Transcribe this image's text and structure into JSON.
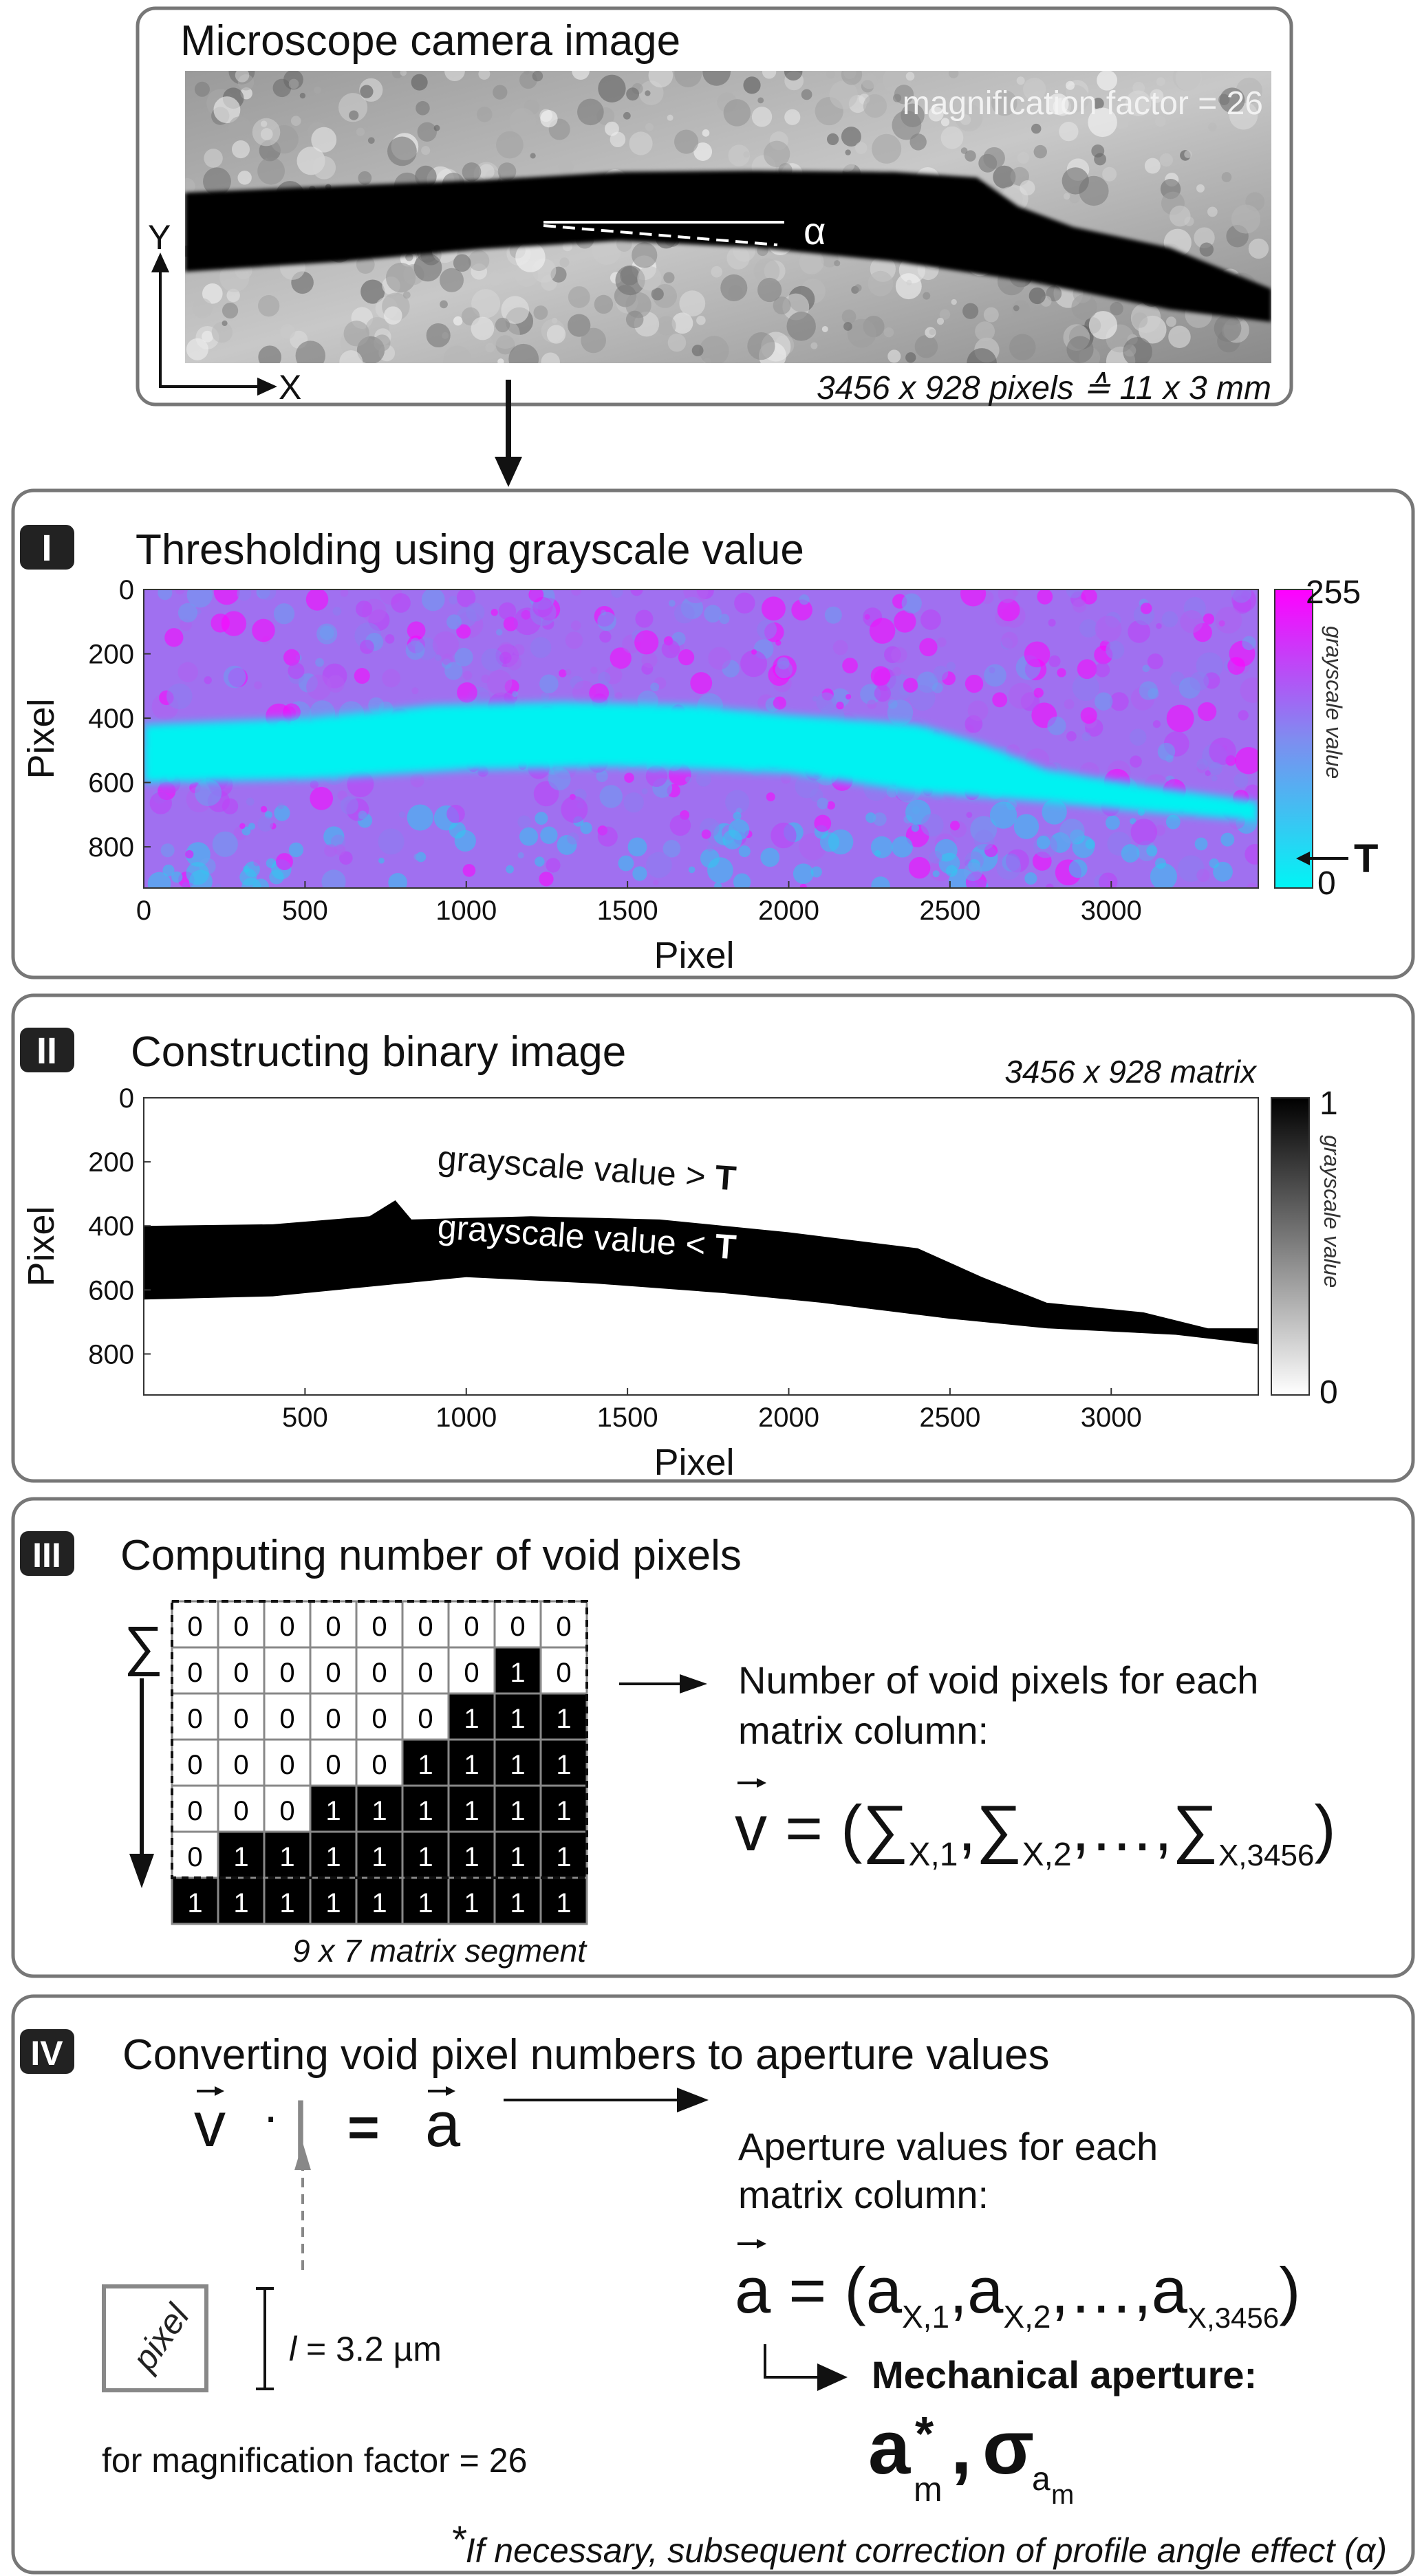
{
  "top": {
    "title": "Microscope camera image",
    "magnification": "magnification factor = 26",
    "alpha": "α",
    "axis_x": "X",
    "axis_y": "Y",
    "dimensions": "3456 x 928 pixels ≙ 11 x 3 mm"
  },
  "panel1": {
    "badge": "I",
    "title": "Thresholding using grayscale value",
    "colorbar_max": "255",
    "colorbar_min": "0",
    "colorbar_label": "grayscale value",
    "threshold_label": "T",
    "colors": {
      "low": "#00f0f0",
      "mid": "#6aa0f0",
      "high": "#ff00ff"
    }
  },
  "panel2": {
    "badge": "II",
    "title": "Constructing binary image",
    "matrix_size": "3456 x 928 matrix",
    "label_above": "grayscale value > ",
    "label_below": "grayscale value < ",
    "threshold_label": "T",
    "colorbar_max": "1",
    "colorbar_min": "0",
    "colorbar_label": "grayscale value"
  },
  "chart_data": [
    {
      "type": "heatmap",
      "xlabel": "Pixel",
      "ylabel": "Pixel",
      "xlim": [
        0,
        3456
      ],
      "ylim": [
        928,
        0
      ],
      "xticks": [
        "0",
        "500",
        "1000",
        "1500",
        "2000",
        "2500",
        "3000"
      ],
      "yticks": [
        "0",
        "200",
        "400",
        "600",
        "800"
      ],
      "colorbar": {
        "min": 0,
        "max": 255,
        "label": "grayscale value"
      }
    },
    {
      "type": "heatmap",
      "xlabel": "Pixel",
      "ylabel": "Pixel",
      "xlim": [
        0,
        3456
      ],
      "ylim": [
        928,
        0
      ],
      "xticks": [
        "500",
        "1000",
        "1500",
        "2000",
        "2500",
        "3000"
      ],
      "yticks": [
        "0",
        "200",
        "400",
        "600",
        "800"
      ],
      "colorbar": {
        "min": 0,
        "max": 1,
        "label": "grayscale value"
      }
    }
  ],
  "panel3": {
    "badge": "III",
    "title": "Computing number of void pixels",
    "sum_symbol": "∑",
    "matrix": [
      [
        0,
        0,
        0,
        0,
        0,
        0,
        0,
        0,
        0
      ],
      [
        0,
        0,
        0,
        0,
        0,
        0,
        0,
        1,
        0
      ],
      [
        0,
        0,
        0,
        0,
        0,
        0,
        1,
        1,
        1
      ],
      [
        0,
        0,
        0,
        0,
        0,
        1,
        1,
        1,
        1
      ],
      [
        0,
        0,
        0,
        1,
        1,
        1,
        1,
        1,
        1
      ],
      [
        0,
        1,
        1,
        1,
        1,
        1,
        1,
        1,
        1
      ],
      [
        1,
        1,
        1,
        1,
        1,
        1,
        1,
        1,
        1
      ]
    ],
    "matrix_caption": "9 x 7 matrix segment",
    "description_line1": "Number of void pixels for each",
    "description_line2": "matrix column:",
    "formula": {
      "lhs": "v",
      "eq": " = (",
      "sum": "∑",
      "sub1": "X,1",
      "sub2": "X,2",
      "subn": "X,3456",
      "sep": ",",
      "dots": ",…,",
      "close": ")"
    }
  },
  "panel4": {
    "badge": "IV",
    "title": "Converting void pixel numbers to aperture values",
    "formula": {
      "v": "v",
      "dot": "·",
      "l": "|",
      "eq": "=",
      "a": "a"
    },
    "description_line1": "Aperture values for each",
    "description_line2": "matrix column:",
    "aperture_formula": {
      "lhs": "a",
      "eq": " = (",
      "a": "a",
      "sub1": "X,1",
      "sub2": "X,2",
      "subn": "X,3456",
      "sep": ",",
      "dots": ",…,",
      "close": ")"
    },
    "result_label": "Mechanical aperture:",
    "result": {
      "a": "a",
      "star": "*",
      "m": "m",
      "comma": ",",
      "sigma": "σ",
      "sub_a": "a",
      "sub_m": "m"
    },
    "pixel_label": "pixel",
    "pixel_length": "l = 3.2 µm",
    "pixel_length_symbol": "l",
    "pixel_length_value": " = 3.2 µm",
    "magnification": "for magnification factor = 26",
    "footnote_star": "*",
    "footnote": "If necessary, subsequent correction of profile angle effect (α)"
  }
}
